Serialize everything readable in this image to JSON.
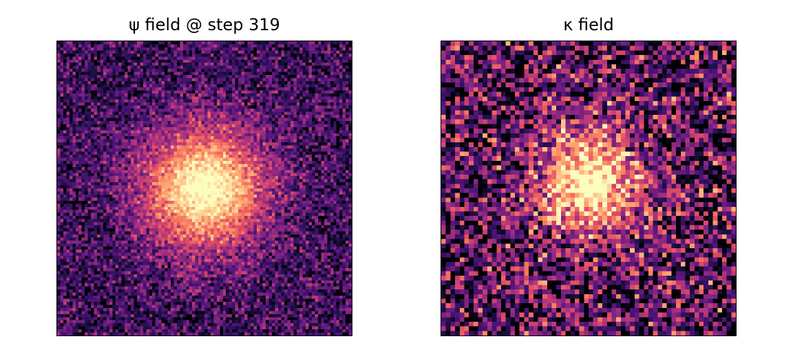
{
  "chart_data": [
    {
      "type": "heatmap",
      "title": "ψ field @ step 319",
      "colormap": "magma",
      "grid": false,
      "axes_ticks": false,
      "resolution": [
        96,
        96
      ],
      "center": [
        0.5,
        0.5
      ],
      "blob_sigma": 0.15,
      "noise": 0.35,
      "background_level": 0.2,
      "seed": 319
    },
    {
      "type": "heatmap",
      "title": "κ field",
      "colormap": "magma",
      "grid": false,
      "axes_ticks": false,
      "resolution": [
        64,
        64
      ],
      "center": [
        0.5,
        0.48
      ],
      "blob_sigma": 0.13,
      "noise": 0.65,
      "background_level": 0.25,
      "seed": 71
    }
  ]
}
